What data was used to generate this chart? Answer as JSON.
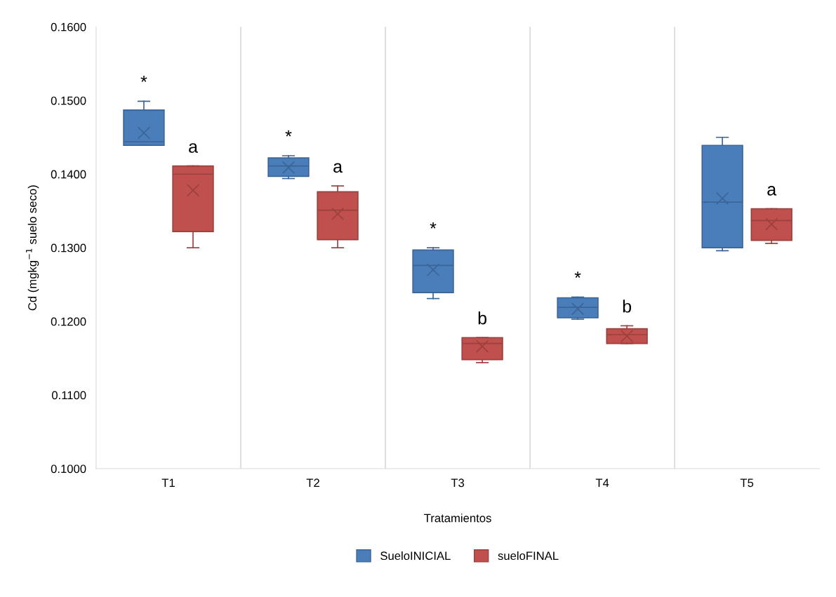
{
  "chart_data": {
    "type": "box",
    "xlabel": "Tratamientos",
    "ylabel": "Cd (mgkg$^{−1}$ suelo seco)",
    "categories": [
      "T1",
      "T2",
      "T3",
      "T4",
      "T5"
    ],
    "ylim": [
      0.1,
      0.16
    ],
    "yticks": [
      {
        "value": 0.1,
        "label": "0.1000"
      },
      {
        "value": 0.11,
        "label": "0.1100"
      },
      {
        "value": 0.12,
        "label": "0.1200"
      },
      {
        "value": 0.13,
        "label": "0.1300"
      },
      {
        "value": 0.14,
        "label": "0.1400"
      },
      {
        "value": 0.15,
        "label": "0.1500"
      },
      {
        "value": 0.16,
        "label": "0.1600"
      }
    ],
    "grid": "x",
    "legend": "bottom",
    "series": [
      {
        "name": "SueloINICIAL",
        "color": "#4a7ebb",
        "boxes": [
          {
            "low": 0.1439,
            "q1": 0.1439,
            "median": 0.1444,
            "q3": 0.1487,
            "high": 0.1499,
            "mean": 0.1456
          },
          {
            "low": 0.1394,
            "q1": 0.1397,
            "median": 0.1411,
            "q3": 0.1422,
            "high": 0.1425,
            "mean": 0.1409
          },
          {
            "low": 0.1231,
            "q1": 0.1239,
            "median": 0.1276,
            "q3": 0.1297,
            "high": 0.13,
            "mean": 0.127
          },
          {
            "low": 0.1203,
            "q1": 0.1205,
            "median": 0.1219,
            "q3": 0.1232,
            "high": 0.1233,
            "mean": 0.1217
          },
          {
            "low": 0.1296,
            "q1": 0.13,
            "median": 0.1362,
            "q3": 0.1439,
            "high": 0.145,
            "mean": 0.1367
          }
        ]
      },
      {
        "name": "sueloFINAL",
        "color": "#c0504d",
        "boxes": [
          {
            "low": 0.13,
            "q1": 0.1322,
            "median": 0.14,
            "q3": 0.1411,
            "high": 0.1411,
            "mean": 0.1378
          },
          {
            "low": 0.13,
            "q1": 0.1311,
            "median": 0.1351,
            "q3": 0.1376,
            "high": 0.1384,
            "mean": 0.1346
          },
          {
            "low": 0.1144,
            "q1": 0.1148,
            "median": 0.117,
            "q3": 0.1178,
            "high": 0.1178,
            "mean": 0.1166
          },
          {
            "low": 0.117,
            "q1": 0.117,
            "median": 0.1182,
            "q3": 0.119,
            "high": 0.1194,
            "mean": 0.118
          },
          {
            "low": 0.1306,
            "q1": 0.131,
            "median": 0.1337,
            "q3": 0.1353,
            "high": 0.1353,
            "mean": 0.1332
          }
        ]
      }
    ],
    "annotations": [
      "*",
      "a",
      "*",
      "a",
      "*",
      "b",
      "*",
      "b",
      "a"
    ]
  }
}
